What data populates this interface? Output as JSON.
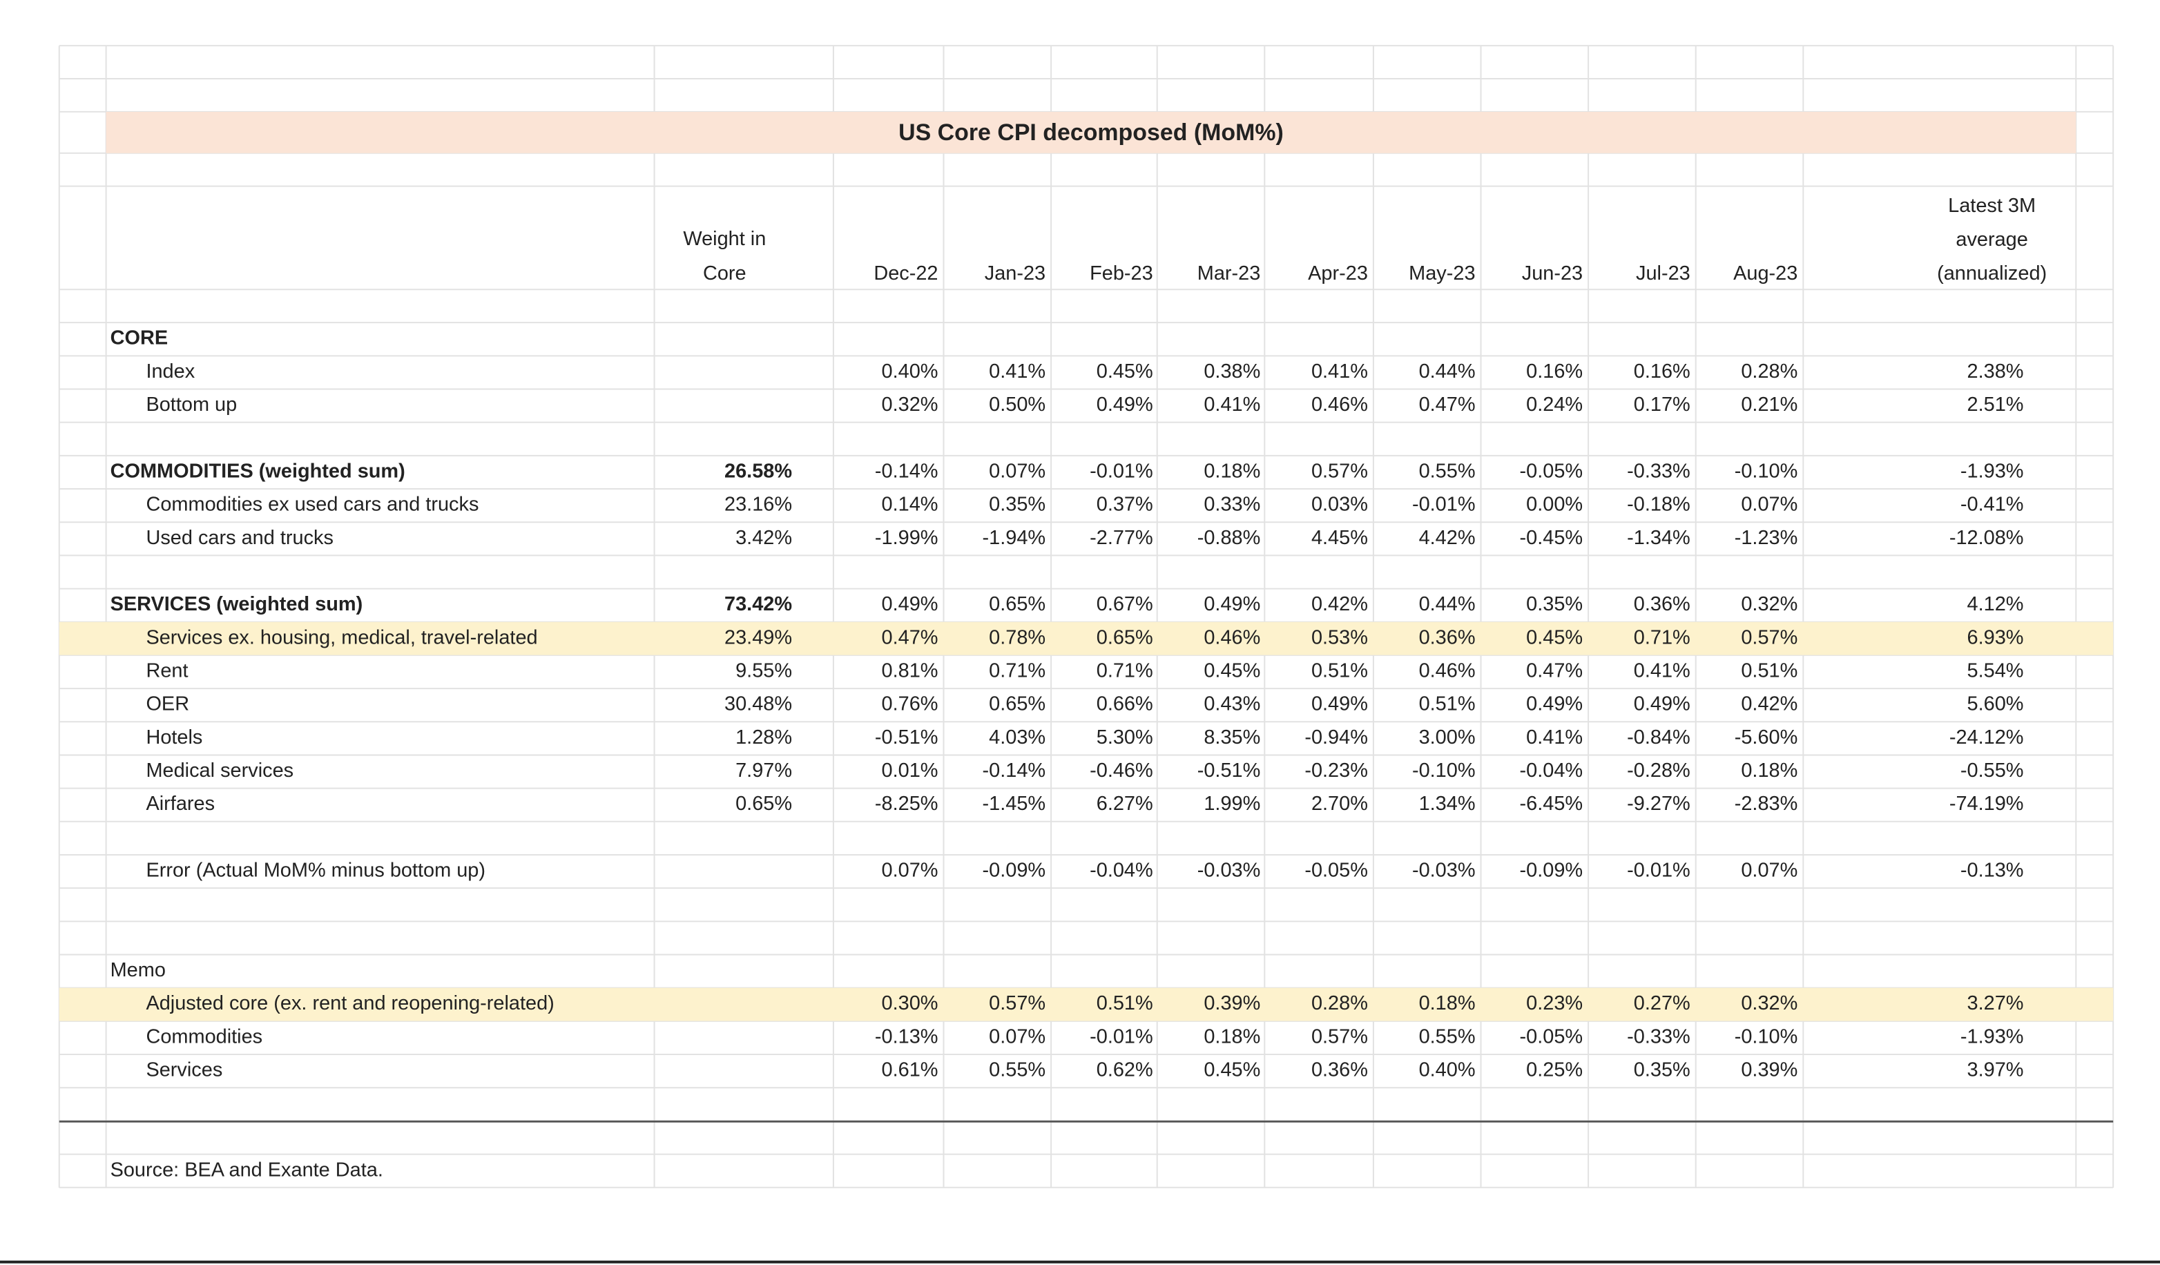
{
  "title": "US Core CPI decomposed (MoM%)",
  "table": {
    "weight_header": [
      "Weight in",
      "Core"
    ],
    "months": [
      "Dec-22",
      "Jan-23",
      "Feb-23",
      "Mar-23",
      "Apr-23",
      "May-23",
      "Jun-23",
      "Jul-23",
      "Aug-23"
    ],
    "average_header": [
      "Latest 3M",
      "average",
      "(annualized)"
    ],
    "rows": [
      {
        "label": "CORE",
        "bold": true
      },
      {
        "label": "Index",
        "values": [
          "0.40%",
          "0.41%",
          "0.45%",
          "0.38%",
          "0.41%",
          "0.44%",
          "0.16%",
          "0.16%",
          "0.28%"
        ],
        "average": "2.38%"
      },
      {
        "label": "Bottom up",
        "values": [
          "0.32%",
          "0.50%",
          "0.49%",
          "0.41%",
          "0.46%",
          "0.47%",
          "0.24%",
          "0.17%",
          "0.21%"
        ],
        "average": "2.51%"
      },
      {
        "label": "COMMODITIES (weighted sum)",
        "bold": true,
        "weight": "26.58%",
        "values": [
          "-0.14%",
          "0.07%",
          "-0.01%",
          "0.18%",
          "0.57%",
          "0.55%",
          "-0.05%",
          "-0.33%",
          "-0.10%"
        ],
        "average": "-1.93%"
      },
      {
        "label": "Commodities ex used cars and trucks",
        "weight": "23.16%",
        "values": [
          "0.14%",
          "0.35%",
          "0.37%",
          "0.33%",
          "0.03%",
          "-0.01%",
          "0.00%",
          "-0.18%",
          "0.07%"
        ],
        "average": "-0.41%"
      },
      {
        "label": "Used cars and trucks",
        "weight": "3.42%",
        "values": [
          "-1.99%",
          "-1.94%",
          "-2.77%",
          "-0.88%",
          "4.45%",
          "4.42%",
          "-0.45%",
          "-1.34%",
          "-1.23%"
        ],
        "average": "-12.08%"
      },
      {
        "label": "SERVICES (weighted sum)",
        "bold": true,
        "weight": "73.42%",
        "values": [
          "0.49%",
          "0.65%",
          "0.67%",
          "0.49%",
          "0.42%",
          "0.44%",
          "0.35%",
          "0.36%",
          "0.32%"
        ],
        "average": "4.12%"
      },
      {
        "label": "Services ex. housing, medical, travel-related",
        "highlight": true,
        "weight": "23.49%",
        "values": [
          "0.47%",
          "0.78%",
          "0.65%",
          "0.46%",
          "0.53%",
          "0.36%",
          "0.45%",
          "0.71%",
          "0.57%"
        ],
        "average": "6.93%"
      },
      {
        "label": "Rent",
        "weight": "9.55%",
        "values": [
          "0.81%",
          "0.71%",
          "0.71%",
          "0.45%",
          "0.51%",
          "0.46%",
          "0.47%",
          "0.41%",
          "0.51%"
        ],
        "average": "5.54%"
      },
      {
        "label": "OER",
        "weight": "30.48%",
        "values": [
          "0.76%",
          "0.65%",
          "0.66%",
          "0.43%",
          "0.49%",
          "0.51%",
          "0.49%",
          "0.49%",
          "0.42%"
        ],
        "average": "5.60%"
      },
      {
        "label": "Hotels",
        "weight": "1.28%",
        "values": [
          "-0.51%",
          "4.03%",
          "5.30%",
          "8.35%",
          "-0.94%",
          "3.00%",
          "0.41%",
          "-0.84%",
          "-5.60%"
        ],
        "average": "-24.12%"
      },
      {
        "label": "Medical services",
        "weight": "7.97%",
        "values": [
          "0.01%",
          "-0.14%",
          "-0.46%",
          "-0.51%",
          "-0.23%",
          "-0.10%",
          "-0.04%",
          "-0.28%",
          "0.18%"
        ],
        "average": "-0.55%"
      },
      {
        "label": "Airfares",
        "weight": "0.65%",
        "values": [
          "-8.25%",
          "-1.45%",
          "6.27%",
          "1.99%",
          "2.70%",
          "1.34%",
          "-6.45%",
          "-9.27%",
          "-2.83%"
        ],
        "average": "-74.19%"
      },
      {
        "label": "Error (Actual MoM% minus bottom up)",
        "values": [
          "0.07%",
          "-0.09%",
          "-0.04%",
          "-0.03%",
          "-0.05%",
          "-0.03%",
          "-0.09%",
          "-0.01%",
          "0.07%"
        ],
        "average": "-0.13%"
      },
      {
        "label": "Memo",
        "plain": true
      },
      {
        "label": "Adjusted core (ex. rent and reopening-related)",
        "highlight": true,
        "values": [
          "0.30%",
          "0.57%",
          "0.51%",
          "0.39%",
          "0.28%",
          "0.18%",
          "0.23%",
          "0.27%",
          "0.32%"
        ],
        "average": "3.27%"
      },
      {
        "label": "Commodities",
        "values": [
          "-0.13%",
          "0.07%",
          "-0.01%",
          "0.18%",
          "0.57%",
          "0.55%",
          "-0.05%",
          "-0.33%",
          "-0.10%"
        ],
        "average": "-1.93%"
      },
      {
        "label": "Services",
        "values": [
          "0.61%",
          "0.55%",
          "0.62%",
          "0.45%",
          "0.36%",
          "0.40%",
          "0.25%",
          "0.35%",
          "0.39%"
        ],
        "average": "3.97%"
      }
    ]
  },
  "source": "Source: BEA and Exante Data."
}
